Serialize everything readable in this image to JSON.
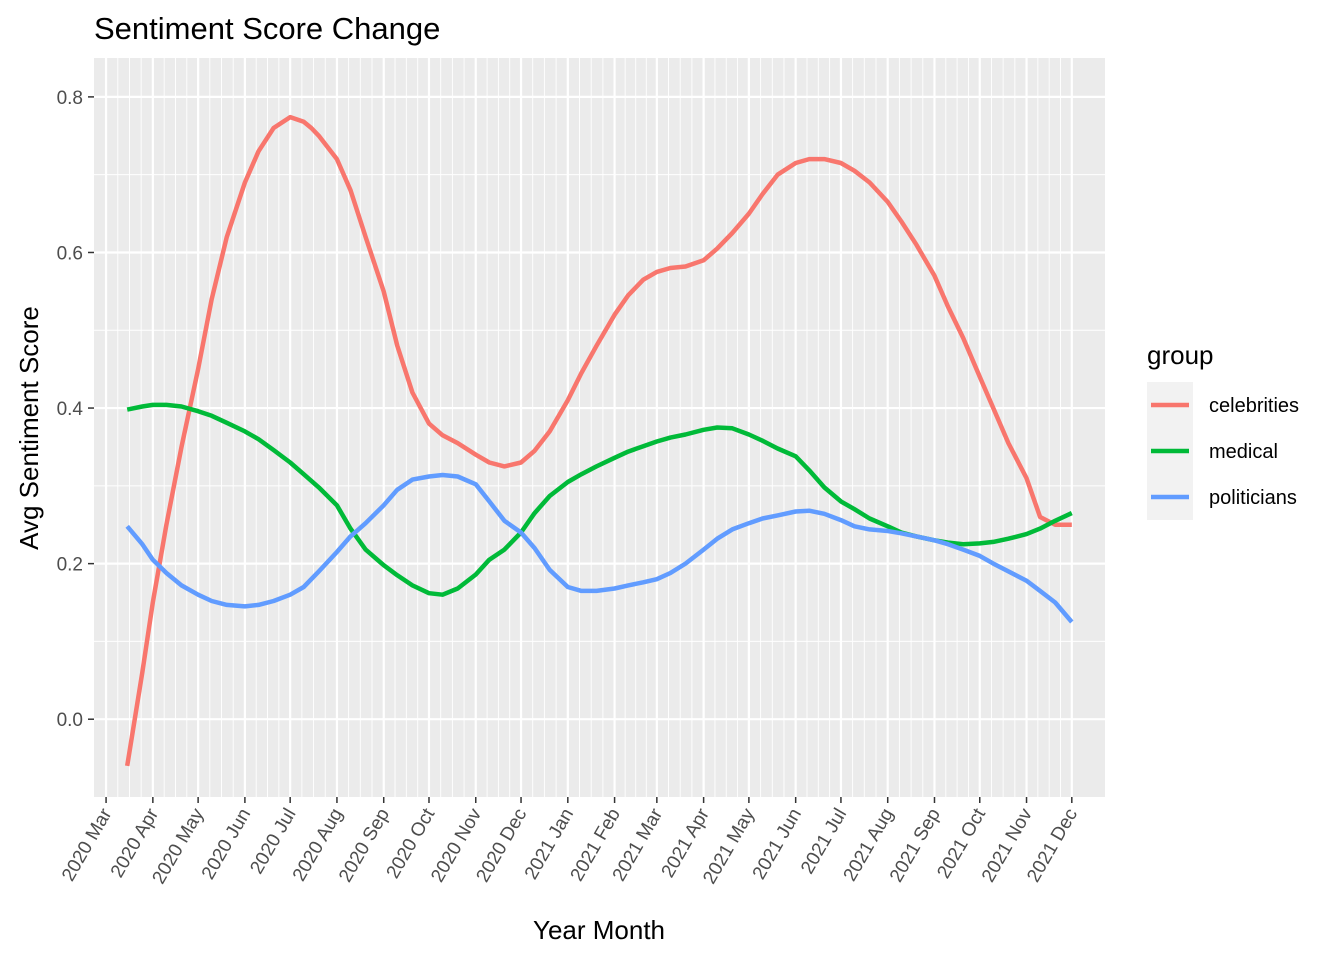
{
  "chart_data": {
    "type": "line",
    "title": "Sentiment Score Change",
    "xlabel": "Year Month",
    "ylabel": "Avg Sentiment Score",
    "x_ticks": [
      "2020 Mar",
      "2020 Apr",
      "2020 May",
      "2020 Jun",
      "2020 Jul",
      "2020 Aug",
      "2020 Sep",
      "2020 Oct",
      "2020 Nov",
      "2020 Dec",
      "2021 Jan",
      "2021 Feb",
      "2021 Mar",
      "2021 Apr",
      "2021 May",
      "2021 Jun",
      "2021 Jul",
      "2021 Aug",
      "2021 Sep",
      "2021 Oct",
      "2021 Nov",
      "2021 Dec"
    ],
    "y_ticks": [
      "0.0",
      "0.2",
      "0.4",
      "0.6",
      "0.8"
    ],
    "ylim": [
      -0.1,
      0.85
    ],
    "xlim": [
      "2020-02-22",
      "2021-12-23"
    ],
    "x_scale": "date",
    "grid": true,
    "legend": {
      "title": "group",
      "position": "right"
    },
    "series": [
      {
        "name": "celebrities",
        "color": "#F8766D",
        "x": [
          "2020-03-15",
          "2020-03-25",
          "2020-04-01",
          "2020-04-10",
          "2020-04-20",
          "2020-05-01",
          "2020-05-10",
          "2020-05-20",
          "2020-06-01",
          "2020-06-10",
          "2020-06-20",
          "2020-07-01",
          "2020-07-10",
          "2020-07-15",
          "2020-07-20",
          "2020-08-01",
          "2020-08-10",
          "2020-08-20",
          "2020-09-01",
          "2020-09-10",
          "2020-09-20",
          "2020-10-01",
          "2020-10-10",
          "2020-10-20",
          "2020-11-01",
          "2020-11-10",
          "2020-11-20",
          "2020-12-01",
          "2020-12-10",
          "2020-12-20",
          "2021-01-01",
          "2021-01-10",
          "2021-01-20",
          "2021-02-01",
          "2021-02-10",
          "2021-02-20",
          "2021-03-01",
          "2021-03-10",
          "2021-03-20",
          "2021-04-01",
          "2021-04-10",
          "2021-04-20",
          "2021-05-01",
          "2021-05-10",
          "2021-05-20",
          "2021-06-01",
          "2021-06-10",
          "2021-06-20",
          "2021-07-01",
          "2021-07-10",
          "2021-07-20",
          "2021-08-01",
          "2021-08-10",
          "2021-08-20",
          "2021-09-01",
          "2021-09-10",
          "2021-09-20",
          "2021-10-01",
          "2021-10-10",
          "2021-10-20",
          "2021-11-01",
          "2021-11-10",
          "2021-11-20",
          "2021-12-01"
        ],
        "y": [
          -0.06,
          0.06,
          0.15,
          0.25,
          0.35,
          0.45,
          0.54,
          0.62,
          0.69,
          0.73,
          0.76,
          0.774,
          0.768,
          0.76,
          0.75,
          0.72,
          0.68,
          0.62,
          0.55,
          0.48,
          0.42,
          0.38,
          0.365,
          0.355,
          0.34,
          0.33,
          0.325,
          0.33,
          0.345,
          0.37,
          0.41,
          0.445,
          0.48,
          0.52,
          0.545,
          0.565,
          0.575,
          0.58,
          0.582,
          0.59,
          0.605,
          0.625,
          0.65,
          0.675,
          0.7,
          0.715,
          0.72,
          0.72,
          0.715,
          0.705,
          0.69,
          0.665,
          0.64,
          0.61,
          0.57,
          0.53,
          0.49,
          0.44,
          0.4,
          0.355,
          0.31,
          0.26,
          0.25,
          0.25
        ]
      },
      {
        "name": "medical",
        "color": "#00BA38",
        "x": [
          "2020-03-15",
          "2020-03-25",
          "2020-04-01",
          "2020-04-10",
          "2020-04-20",
          "2020-05-01",
          "2020-05-10",
          "2020-05-20",
          "2020-06-01",
          "2020-06-10",
          "2020-06-20",
          "2020-07-01",
          "2020-07-10",
          "2020-07-20",
          "2020-08-01",
          "2020-08-10",
          "2020-08-20",
          "2020-09-01",
          "2020-09-10",
          "2020-09-20",
          "2020-10-01",
          "2020-10-10",
          "2020-10-20",
          "2020-11-01",
          "2020-11-10",
          "2020-11-20",
          "2020-12-01",
          "2020-12-10",
          "2020-12-20",
          "2021-01-01",
          "2021-01-10",
          "2021-01-20",
          "2021-02-01",
          "2021-02-10",
          "2021-02-20",
          "2021-03-01",
          "2021-03-10",
          "2021-03-20",
          "2021-04-01",
          "2021-04-10",
          "2021-04-20",
          "2021-05-01",
          "2021-05-10",
          "2021-05-20",
          "2021-06-01",
          "2021-06-10",
          "2021-06-20",
          "2021-07-01",
          "2021-07-10",
          "2021-07-20",
          "2021-08-01",
          "2021-08-10",
          "2021-08-20",
          "2021-09-01",
          "2021-09-10",
          "2021-09-20",
          "2021-10-01",
          "2021-10-10",
          "2021-10-20",
          "2021-11-01",
          "2021-11-10",
          "2021-11-20",
          "2021-12-01"
        ],
        "y": [
          0.398,
          0.402,
          0.404,
          0.404,
          0.402,
          0.396,
          0.39,
          0.381,
          0.37,
          0.36,
          0.346,
          0.33,
          0.315,
          0.298,
          0.275,
          0.245,
          0.218,
          0.198,
          0.185,
          0.172,
          0.162,
          0.16,
          0.168,
          0.186,
          0.205,
          0.218,
          0.24,
          0.265,
          0.287,
          0.305,
          0.315,
          0.325,
          0.336,
          0.344,
          0.351,
          0.357,
          0.362,
          0.366,
          0.372,
          0.375,
          0.374,
          0.366,
          0.358,
          0.348,
          0.338,
          0.32,
          0.298,
          0.28,
          0.27,
          0.258,
          0.248,
          0.24,
          0.235,
          0.23,
          0.227,
          0.225,
          0.226,
          0.228,
          0.232,
          0.238,
          0.245,
          0.255,
          0.265
        ]
      },
      {
        "name": "politicians",
        "color": "#619CFF",
        "x": [
          "2020-03-15",
          "2020-03-25",
          "2020-04-01",
          "2020-04-10",
          "2020-04-20",
          "2020-05-01",
          "2020-05-10",
          "2020-05-20",
          "2020-06-01",
          "2020-06-10",
          "2020-06-20",
          "2020-07-01",
          "2020-07-10",
          "2020-07-20",
          "2020-08-01",
          "2020-08-10",
          "2020-08-20",
          "2020-09-01",
          "2020-09-10",
          "2020-09-20",
          "2020-10-01",
          "2020-10-10",
          "2020-10-20",
          "2020-11-01",
          "2020-11-10",
          "2020-11-20",
          "2020-12-01",
          "2020-12-10",
          "2020-12-20",
          "2021-01-01",
          "2021-01-10",
          "2021-01-20",
          "2021-02-01",
          "2021-02-10",
          "2021-02-20",
          "2021-03-01",
          "2021-03-10",
          "2021-03-20",
          "2021-04-01",
          "2021-04-10",
          "2021-04-20",
          "2021-05-01",
          "2021-05-10",
          "2021-05-20",
          "2021-06-01",
          "2021-06-10",
          "2021-06-20",
          "2021-07-01",
          "2021-07-10",
          "2021-07-20",
          "2021-08-01",
          "2021-08-10",
          "2021-08-20",
          "2021-09-01",
          "2021-09-10",
          "2021-09-20",
          "2021-10-01",
          "2021-10-10",
          "2021-10-20",
          "2021-11-01",
          "2021-11-10",
          "2021-11-20",
          "2021-12-01"
        ],
        "y": [
          0.248,
          0.225,
          0.205,
          0.188,
          0.172,
          0.16,
          0.152,
          0.147,
          0.145,
          0.147,
          0.152,
          0.16,
          0.17,
          0.19,
          0.215,
          0.235,
          0.252,
          0.275,
          0.295,
          0.308,
          0.312,
          0.314,
          0.312,
          0.302,
          0.28,
          0.255,
          0.24,
          0.22,
          0.192,
          0.17,
          0.165,
          0.165,
          0.168,
          0.172,
          0.176,
          0.18,
          0.188,
          0.2,
          0.218,
          0.232,
          0.244,
          0.252,
          0.258,
          0.262,
          0.267,
          0.268,
          0.264,
          0.256,
          0.248,
          0.244,
          0.242,
          0.239,
          0.235,
          0.23,
          0.225,
          0.218,
          0.21,
          0.2,
          0.19,
          0.178,
          0.165,
          0.15,
          0.125
        ]
      }
    ]
  }
}
